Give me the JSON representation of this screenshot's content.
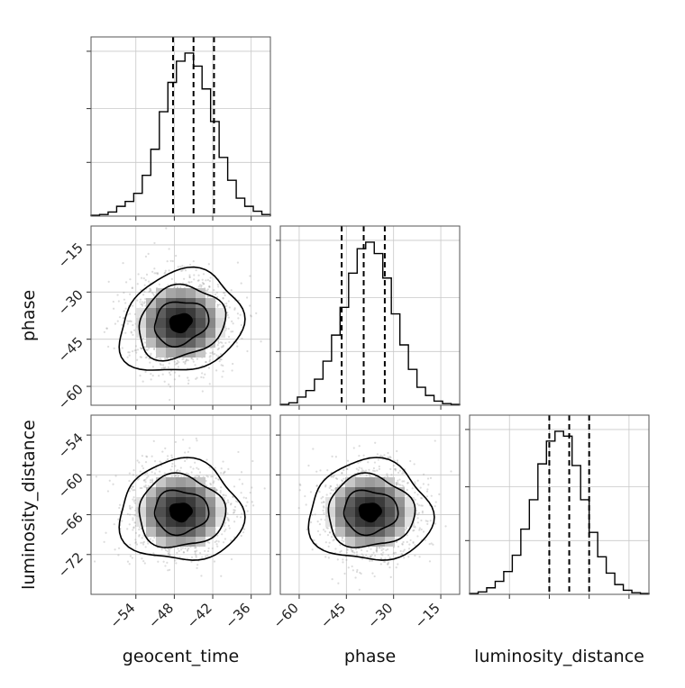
{
  "chart_data": {
    "type": "corner",
    "parameters": [
      {
        "name": "geocent_time",
        "range": [
          -61,
          -33
        ],
        "ticks": [
          -54,
          -48,
          -42,
          -36
        ],
        "tick_labels": [
          "−54",
          "−48",
          "−42",
          "−36"
        ],
        "median": -45,
        "lower": -48.2,
        "upper": -41.8,
        "hist_counts": [
          0.5,
          1,
          2.5,
          6,
          9,
          14,
          25,
          41,
          64,
          82,
          95,
          100,
          92,
          78,
          58,
          36,
          22,
          11,
          6,
          3,
          1
        ]
      },
      {
        "name": "phase",
        "range": [
          -66,
          -9
        ],
        "ticks": [
          -60,
          -45,
          -30,
          -15
        ],
        "tick_labels": [
          "−60",
          "−45",
          "−30",
          "−15"
        ],
        "median": -39.5,
        "lower": -46.5,
        "upper": -32.8,
        "hist_counts": [
          0.5,
          1.5,
          5,
          9,
          16,
          27,
          43,
          60,
          81,
          96,
          100,
          93,
          78,
          56,
          37,
          22,
          11,
          6,
          2.5,
          1,
          0.5
        ]
      },
      {
        "name": "luminosity_distance",
        "range": [
          -78,
          -51
        ],
        "ticks": [
          -72,
          -66,
          -60,
          -54
        ],
        "tick_labels": [
          "−72",
          "−66",
          "−60",
          "−54"
        ],
        "median": -63,
        "lower": -66,
        "upper": -60,
        "hist_counts": [
          0.5,
          1.5,
          4,
          8,
          14,
          24,
          40,
          58,
          80,
          94,
          100,
          97,
          79,
          58,
          38,
          23,
          13,
          6,
          2.5,
          1,
          0.5
        ]
      }
    ],
    "scatter_note": "2D posterior samples shown with density contours",
    "grid": true
  }
}
